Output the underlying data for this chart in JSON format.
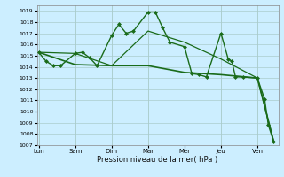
{
  "background_color": "#cceeff",
  "grid_color": "#aacccc",
  "line_color": "#1a6b1a",
  "ylim": [
    1007,
    1019.5
  ],
  "yticks": [
    1007,
    1008,
    1009,
    1010,
    1011,
    1012,
    1013,
    1014,
    1015,
    1016,
    1017,
    1018,
    1019
  ],
  "xlabel": "Pression niveau de la mer( hPa )",
  "day_labels": [
    "Lun",
    "Sam",
    "Dim",
    "Mar",
    "Mer",
    "Jeu",
    "Ven"
  ],
  "day_positions": [
    0,
    40,
    80,
    120,
    160,
    200,
    240
  ],
  "xlim": [
    -2,
    263
  ],
  "lines": [
    {
      "x": [
        0,
        8,
        16,
        24,
        40,
        48,
        56,
        64,
        80,
        88,
        96,
        104,
        120,
        128,
        136,
        144,
        160,
        168,
        176,
        184,
        200,
        208,
        212,
        216,
        224,
        240,
        248,
        252,
        258
      ],
      "y": [
        1015.3,
        1014.5,
        1014.1,
        1014.1,
        1015.2,
        1015.3,
        1014.8,
        1014.1,
        1016.8,
        1017.8,
        1017.0,
        1017.2,
        1018.9,
        1018.9,
        1017.5,
        1016.2,
        1015.8,
        1013.4,
        1013.3,
        1013.1,
        1017.0,
        1014.7,
        1014.5,
        1013.1,
        1013.1,
        1013.0,
        1011.1,
        1008.8,
        1007.3
      ],
      "marker": "D",
      "markersize": 2.0,
      "linewidth": 1.0
    },
    {
      "x": [
        0,
        40,
        80,
        120,
        160,
        200,
        240,
        258
      ],
      "y": [
        1015.3,
        1014.2,
        1014.1,
        1014.1,
        1013.5,
        1013.3,
        1013.0,
        1007.3
      ],
      "marker": null,
      "markersize": 0,
      "linewidth": 1.2
    },
    {
      "x": [
        0,
        40,
        80,
        120,
        160,
        200,
        240,
        258
      ],
      "y": [
        1015.3,
        1015.2,
        1014.1,
        1017.2,
        1016.2,
        1014.7,
        1013.0,
        1007.3
      ],
      "marker": null,
      "markersize": 0,
      "linewidth": 0.9
    }
  ]
}
